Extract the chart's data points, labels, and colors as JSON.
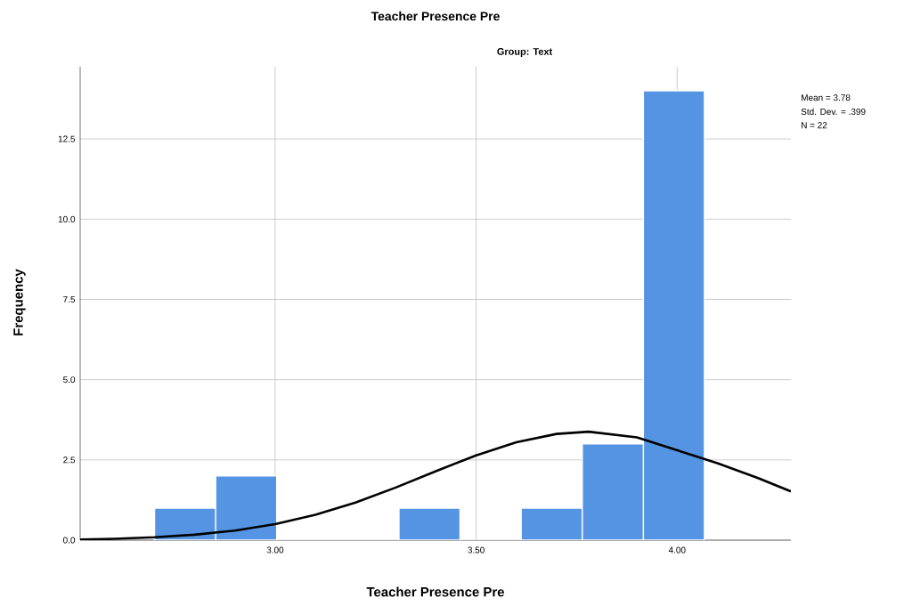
{
  "chart_data": {
    "type": "histogram",
    "title": "Teacher Presence Pre",
    "subtitle": "Group: Text",
    "xlabel": "Teacher Presence Pre",
    "ylabel": "Frequency",
    "bins": [
      2.7,
      2.852,
      3.004,
      3.156,
      3.308,
      3.46,
      3.612,
      3.764,
      3.916,
      4.068
    ],
    "values": [
      1,
      2,
      0,
      0,
      1,
      0,
      1,
      3,
      14
    ],
    "color": "#5594e2",
    "series": [
      {
        "type": "line",
        "color": "#000000",
        "x": [
          2.515,
          2.6,
          2.7,
          2.8,
          2.9,
          3.0,
          3.1,
          3.2,
          3.3,
          3.4,
          3.5,
          3.6,
          3.7,
          3.78,
          3.9,
          4.0,
          4.1,
          4.2,
          4.283
        ],
        "values": [
          0.02,
          0.04,
          0.09,
          0.17,
          0.3,
          0.5,
          0.79,
          1.17,
          1.64,
          2.15,
          2.64,
          3.05,
          3.31,
          3.38,
          3.2,
          2.8,
          2.4,
          1.94,
          1.52
        ]
      }
    ],
    "annotations": [
      "Mean = 3.78",
      "Std. Dev. = .399",
      "N = 22"
    ],
    "xlim": [
      2.515,
      4.283
    ],
    "ylim": [
      0,
      14.75
    ],
    "xticks": [
      {
        "value": 3.0,
        "label": "3.00"
      },
      {
        "value": 3.5,
        "label": "3.50"
      },
      {
        "value": 4.0,
        "label": "4.00"
      }
    ],
    "yticks": [
      {
        "value": 0,
        "label": "0.0"
      },
      {
        "value": 2.5,
        "label": "2.5"
      },
      {
        "value": 5,
        "label": "5.0"
      },
      {
        "value": 7.5,
        "label": "7.5"
      },
      {
        "value": 10,
        "label": "10.0"
      },
      {
        "value": 12.5,
        "label": "12.5"
      }
    ],
    "grid": true
  }
}
